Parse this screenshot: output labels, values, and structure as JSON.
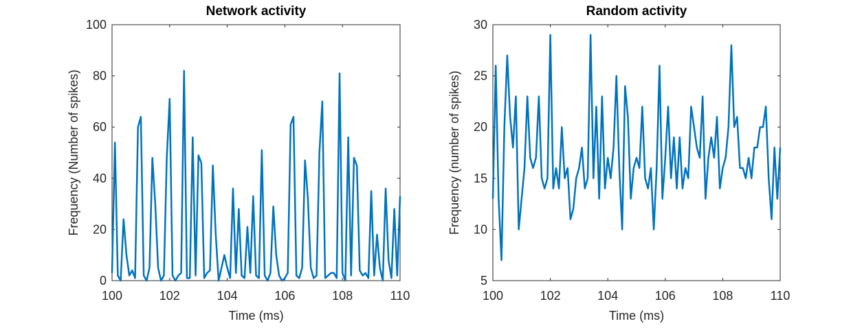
{
  "chart_data": [
    {
      "type": "line",
      "title": "Network activity",
      "xlabel": "Time (ms)",
      "ylabel": "Frequency (Number of spikes)",
      "x": [
        100,
        100.1,
        100.2,
        100.3,
        100.4,
        100.5,
        100.6,
        100.7,
        100.8,
        100.9,
        101,
        101.1,
        101.2,
        101.3,
        101.4,
        101.5,
        101.6,
        101.7,
        101.8,
        101.9,
        102,
        102.1,
        102.2,
        102.3,
        102.4,
        102.5,
        102.6,
        102.7,
        102.8,
        102.9,
        103,
        103.1,
        103.2,
        103.3,
        103.4,
        103.5,
        103.6,
        103.7,
        103.8,
        103.9,
        104,
        104.1,
        104.2,
        104.3,
        104.4,
        104.5,
        104.6,
        104.7,
        104.8,
        104.9,
        105,
        105.1,
        105.2,
        105.3,
        105.4,
        105.5,
        105.6,
        105.7,
        105.8,
        105.9,
        106,
        106.1,
        106.2,
        106.3,
        106.4,
        106.5,
        106.6,
        106.7,
        106.8,
        106.9,
        107,
        107.1,
        107.2,
        107.3,
        107.4,
        107.5,
        107.6,
        107.7,
        107.8,
        107.9,
        108,
        108.1,
        108.2,
        108.3,
        108.4,
        108.5,
        108.6,
        108.7,
        108.8,
        108.9,
        109,
        109.1,
        109.2,
        109.3,
        109.4,
        109.5,
        109.6,
        109.7,
        109.8,
        109.9,
        110
      ],
      "series": [
        {
          "color": "#0072bd",
          "values": [
            3,
            54,
            2,
            0,
            24,
            10,
            2,
            4,
            1,
            60,
            64,
            2,
            0,
            5,
            48,
            30,
            5,
            0,
            2,
            48,
            71,
            2,
            0,
            2,
            3,
            82,
            1,
            1,
            56,
            2,
            49,
            46,
            1,
            3,
            4,
            45,
            18,
            0,
            5,
            10,
            5,
            1,
            36,
            3,
            28,
            2,
            1,
            21,
            3,
            33,
            2,
            1,
            51,
            2,
            0,
            3,
            29,
            10,
            2,
            0,
            1,
            3,
            61,
            64,
            2,
            1,
            5,
            47,
            32,
            5,
            1,
            2,
            50,
            70,
            1,
            2,
            3,
            3,
            1,
            81,
            3,
            0,
            56,
            2,
            48,
            45,
            4,
            2,
            3,
            1,
            35,
            2,
            18,
            5,
            0,
            36,
            8,
            1,
            28,
            2,
            33
          ]
        }
      ],
      "xlim": [
        100,
        110
      ],
      "xticks": [
        100,
        102,
        104,
        106,
        108,
        110
      ],
      "ylim": [
        0,
        100
      ],
      "yticks": [
        0,
        20,
        40,
        60,
        80,
        100
      ]
    },
    {
      "type": "line",
      "title": "Random activity",
      "xlabel": "Time (ms)",
      "ylabel": "Frequency (number of spikes)",
      "x": [
        100,
        100.1,
        100.2,
        100.3,
        100.4,
        100.5,
        100.6,
        100.7,
        100.8,
        100.9,
        101,
        101.1,
        101.2,
        101.3,
        101.4,
        101.5,
        101.6,
        101.7,
        101.8,
        101.9,
        102,
        102.1,
        102.2,
        102.3,
        102.4,
        102.5,
        102.6,
        102.7,
        102.8,
        102.9,
        103,
        103.1,
        103.2,
        103.3,
        103.4,
        103.5,
        103.6,
        103.7,
        103.8,
        103.9,
        104,
        104.1,
        104.2,
        104.3,
        104.4,
        104.5,
        104.6,
        104.7,
        104.8,
        104.9,
        105,
        105.1,
        105.2,
        105.3,
        105.4,
        105.5,
        105.6,
        105.7,
        105.8,
        105.9,
        106,
        106.1,
        106.2,
        106.3,
        106.4,
        106.5,
        106.6,
        106.7,
        106.8,
        106.9,
        107,
        107.1,
        107.2,
        107.3,
        107.4,
        107.5,
        107.6,
        107.7,
        107.8,
        107.9,
        108,
        108.1,
        108.2,
        108.3,
        108.4,
        108.5,
        108.6,
        108.7,
        108.8,
        108.9,
        109,
        109.1,
        109.2,
        109.3,
        109.4,
        109.5,
        109.6,
        109.7,
        109.8,
        109.9,
        110
      ],
      "series": [
        {
          "color": "#0072bd",
          "values": [
            13,
            26,
            13,
            7,
            20,
            27,
            21,
            18,
            23,
            10,
            13,
            16,
            23,
            17,
            16,
            17,
            23,
            15,
            14,
            15,
            29,
            14,
            16,
            14,
            20,
            15,
            16,
            11,
            12,
            15,
            16,
            18,
            14,
            15,
            29,
            15,
            22,
            13,
            23,
            14,
            17,
            15,
            18,
            25,
            16,
            10,
            24,
            21,
            13,
            16,
            17,
            16,
            22,
            15,
            14,
            16,
            10,
            16,
            26,
            13,
            17,
            22,
            15,
            19,
            14,
            19,
            14,
            16,
            15,
            22,
            20,
            18,
            17,
            23,
            13,
            17,
            19,
            17,
            21,
            14,
            16,
            17,
            20,
            28,
            20,
            21,
            16,
            16,
            15,
            17,
            15,
            18,
            18,
            20,
            20,
            22,
            15,
            11,
            18,
            13,
            18
          ]
        }
      ],
      "xlim": [
        100,
        110
      ],
      "xticks": [
        100,
        102,
        104,
        106,
        108,
        110
      ],
      "ylim": [
        5,
        30
      ],
      "yticks": [
        5,
        10,
        15,
        20,
        25,
        30
      ]
    }
  ]
}
